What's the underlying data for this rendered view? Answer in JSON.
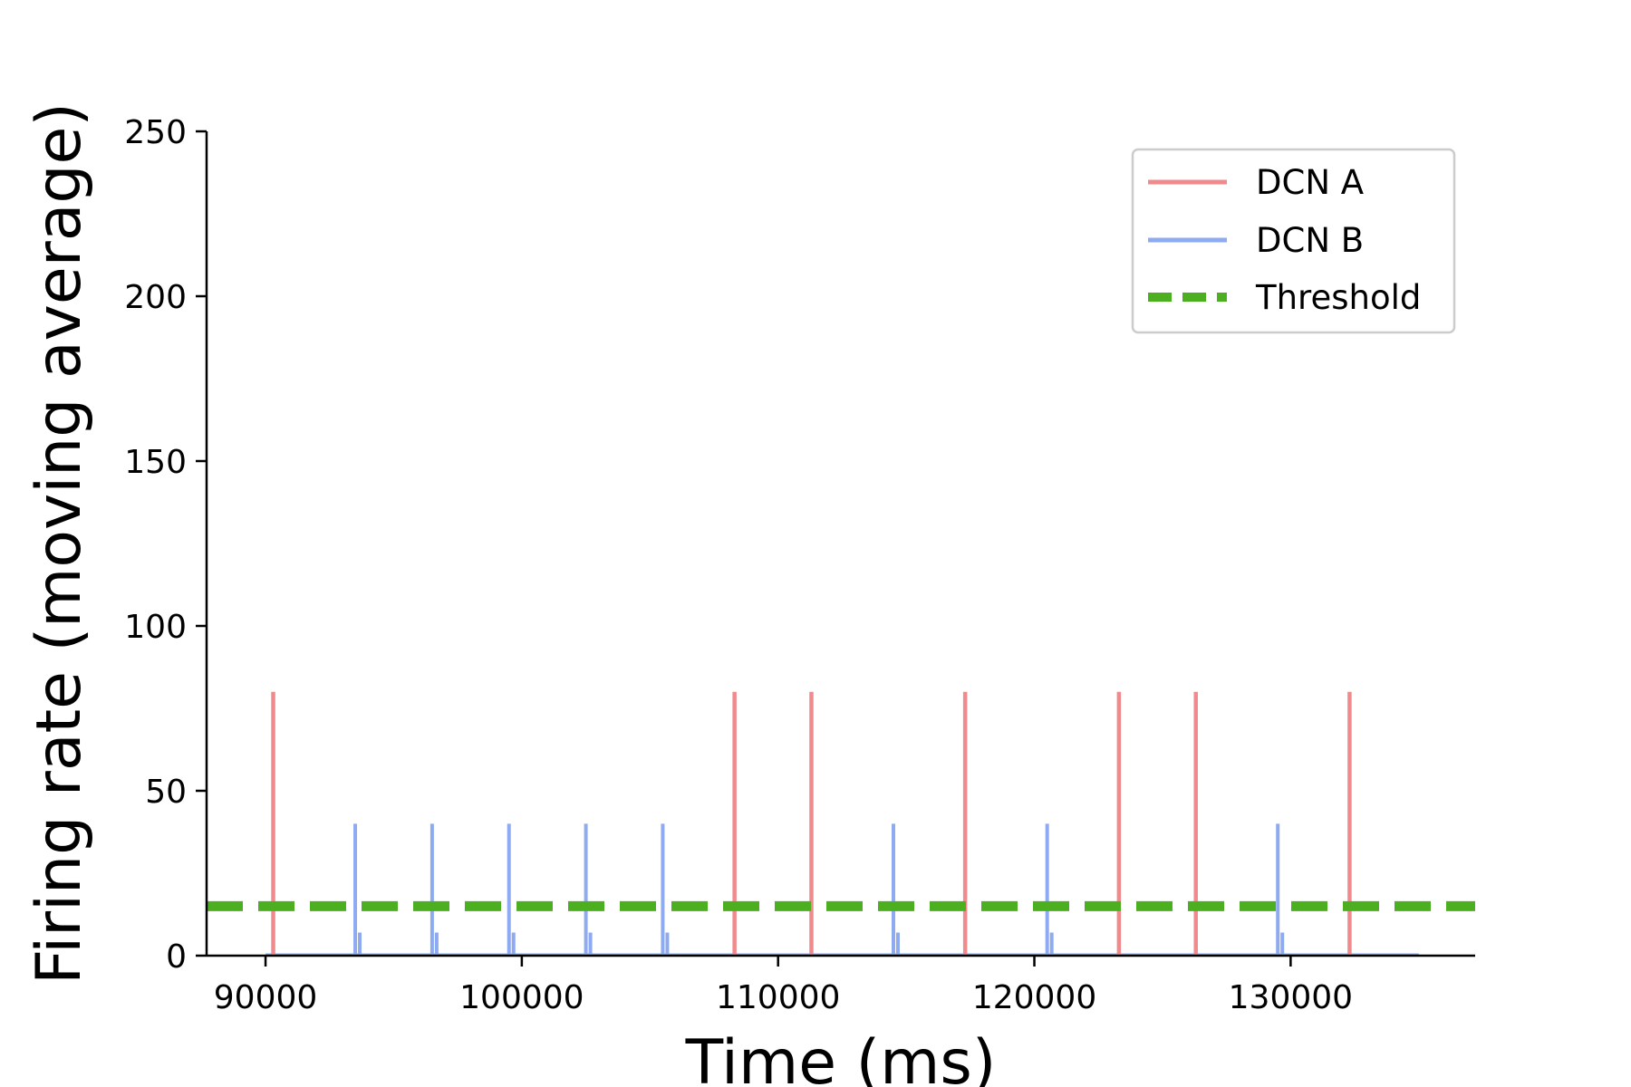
{
  "chart_data": {
    "type": "line",
    "xlabel": "Time (ms)",
    "ylabel": "Firing rate (moving average)",
    "xlim": [
      87700,
      137200
    ],
    "ylim": [
      0,
      250
    ],
    "xticks": [
      90000,
      100000,
      110000,
      120000,
      130000
    ],
    "yticks": [
      0,
      50,
      100,
      150,
      200,
      250
    ],
    "x_range": [
      90000,
      135000
    ],
    "grid": false,
    "legend_position": "top-right",
    "series": [
      {
        "name": "DCN A",
        "color": "#f08a8c",
        "style": "solid",
        "spikes": [
          {
            "x": 90300,
            "y": 80
          },
          {
            "x": 108300,
            "y": 80
          },
          {
            "x": 111300,
            "y": 80
          },
          {
            "x": 117300,
            "y": 80
          },
          {
            "x": 123300,
            "y": 80
          },
          {
            "x": 126300,
            "y": 80
          },
          {
            "x": 132300,
            "y": 80
          }
        ]
      },
      {
        "name": "DCN B",
        "color": "#8eaaf0",
        "style": "solid",
        "spikes": [
          {
            "x": 93500,
            "y": 40,
            "tail": 7
          },
          {
            "x": 96500,
            "y": 40,
            "tail": 7
          },
          {
            "x": 99500,
            "y": 40,
            "tail": 7
          },
          {
            "x": 102500,
            "y": 40,
            "tail": 7
          },
          {
            "x": 105500,
            "y": 40,
            "tail": 7
          },
          {
            "x": 114500,
            "y": 40,
            "tail": 7
          },
          {
            "x": 120500,
            "y": 40,
            "tail": 7
          },
          {
            "x": 129500,
            "y": 40,
            "tail": 7
          }
        ]
      },
      {
        "name": "Threshold",
        "color": "#4caf1f",
        "style": "dashed",
        "y": 15
      }
    ]
  }
}
